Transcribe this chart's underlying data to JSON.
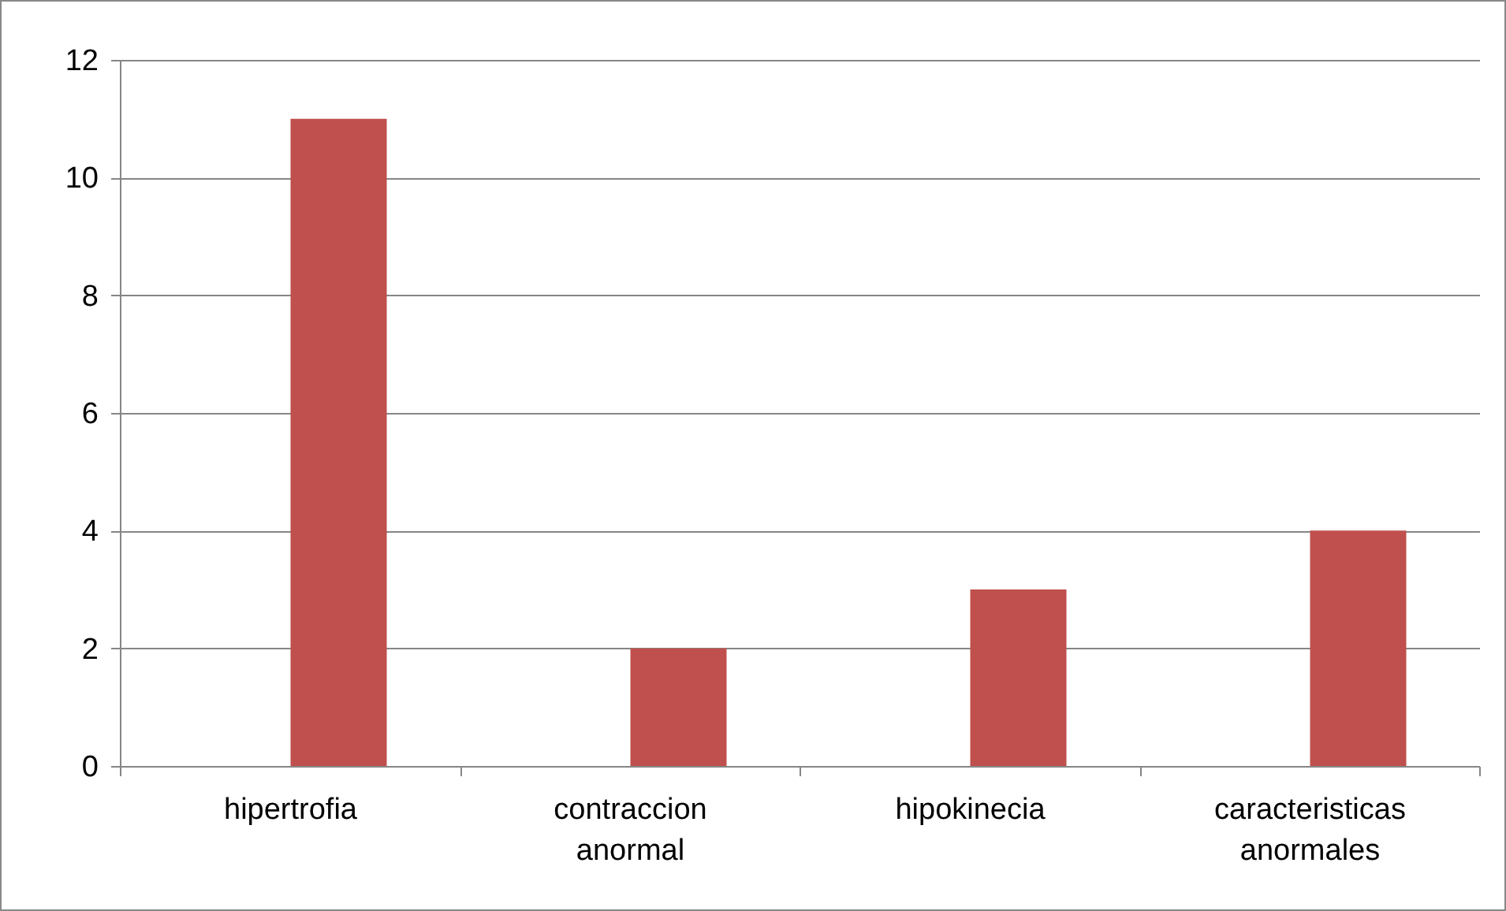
{
  "chart_data": {
    "type": "bar",
    "categories": [
      "hipertrofia",
      "contraccion anormal",
      "hipokinecia",
      "caracteristicas anormales"
    ],
    "values": [
      11,
      2,
      3,
      4
    ],
    "color": "#c0504d",
    "ylim": [
      0,
      12
    ],
    "yticks": [
      0,
      2,
      4,
      6,
      8,
      10,
      12
    ],
    "grid": "y"
  }
}
